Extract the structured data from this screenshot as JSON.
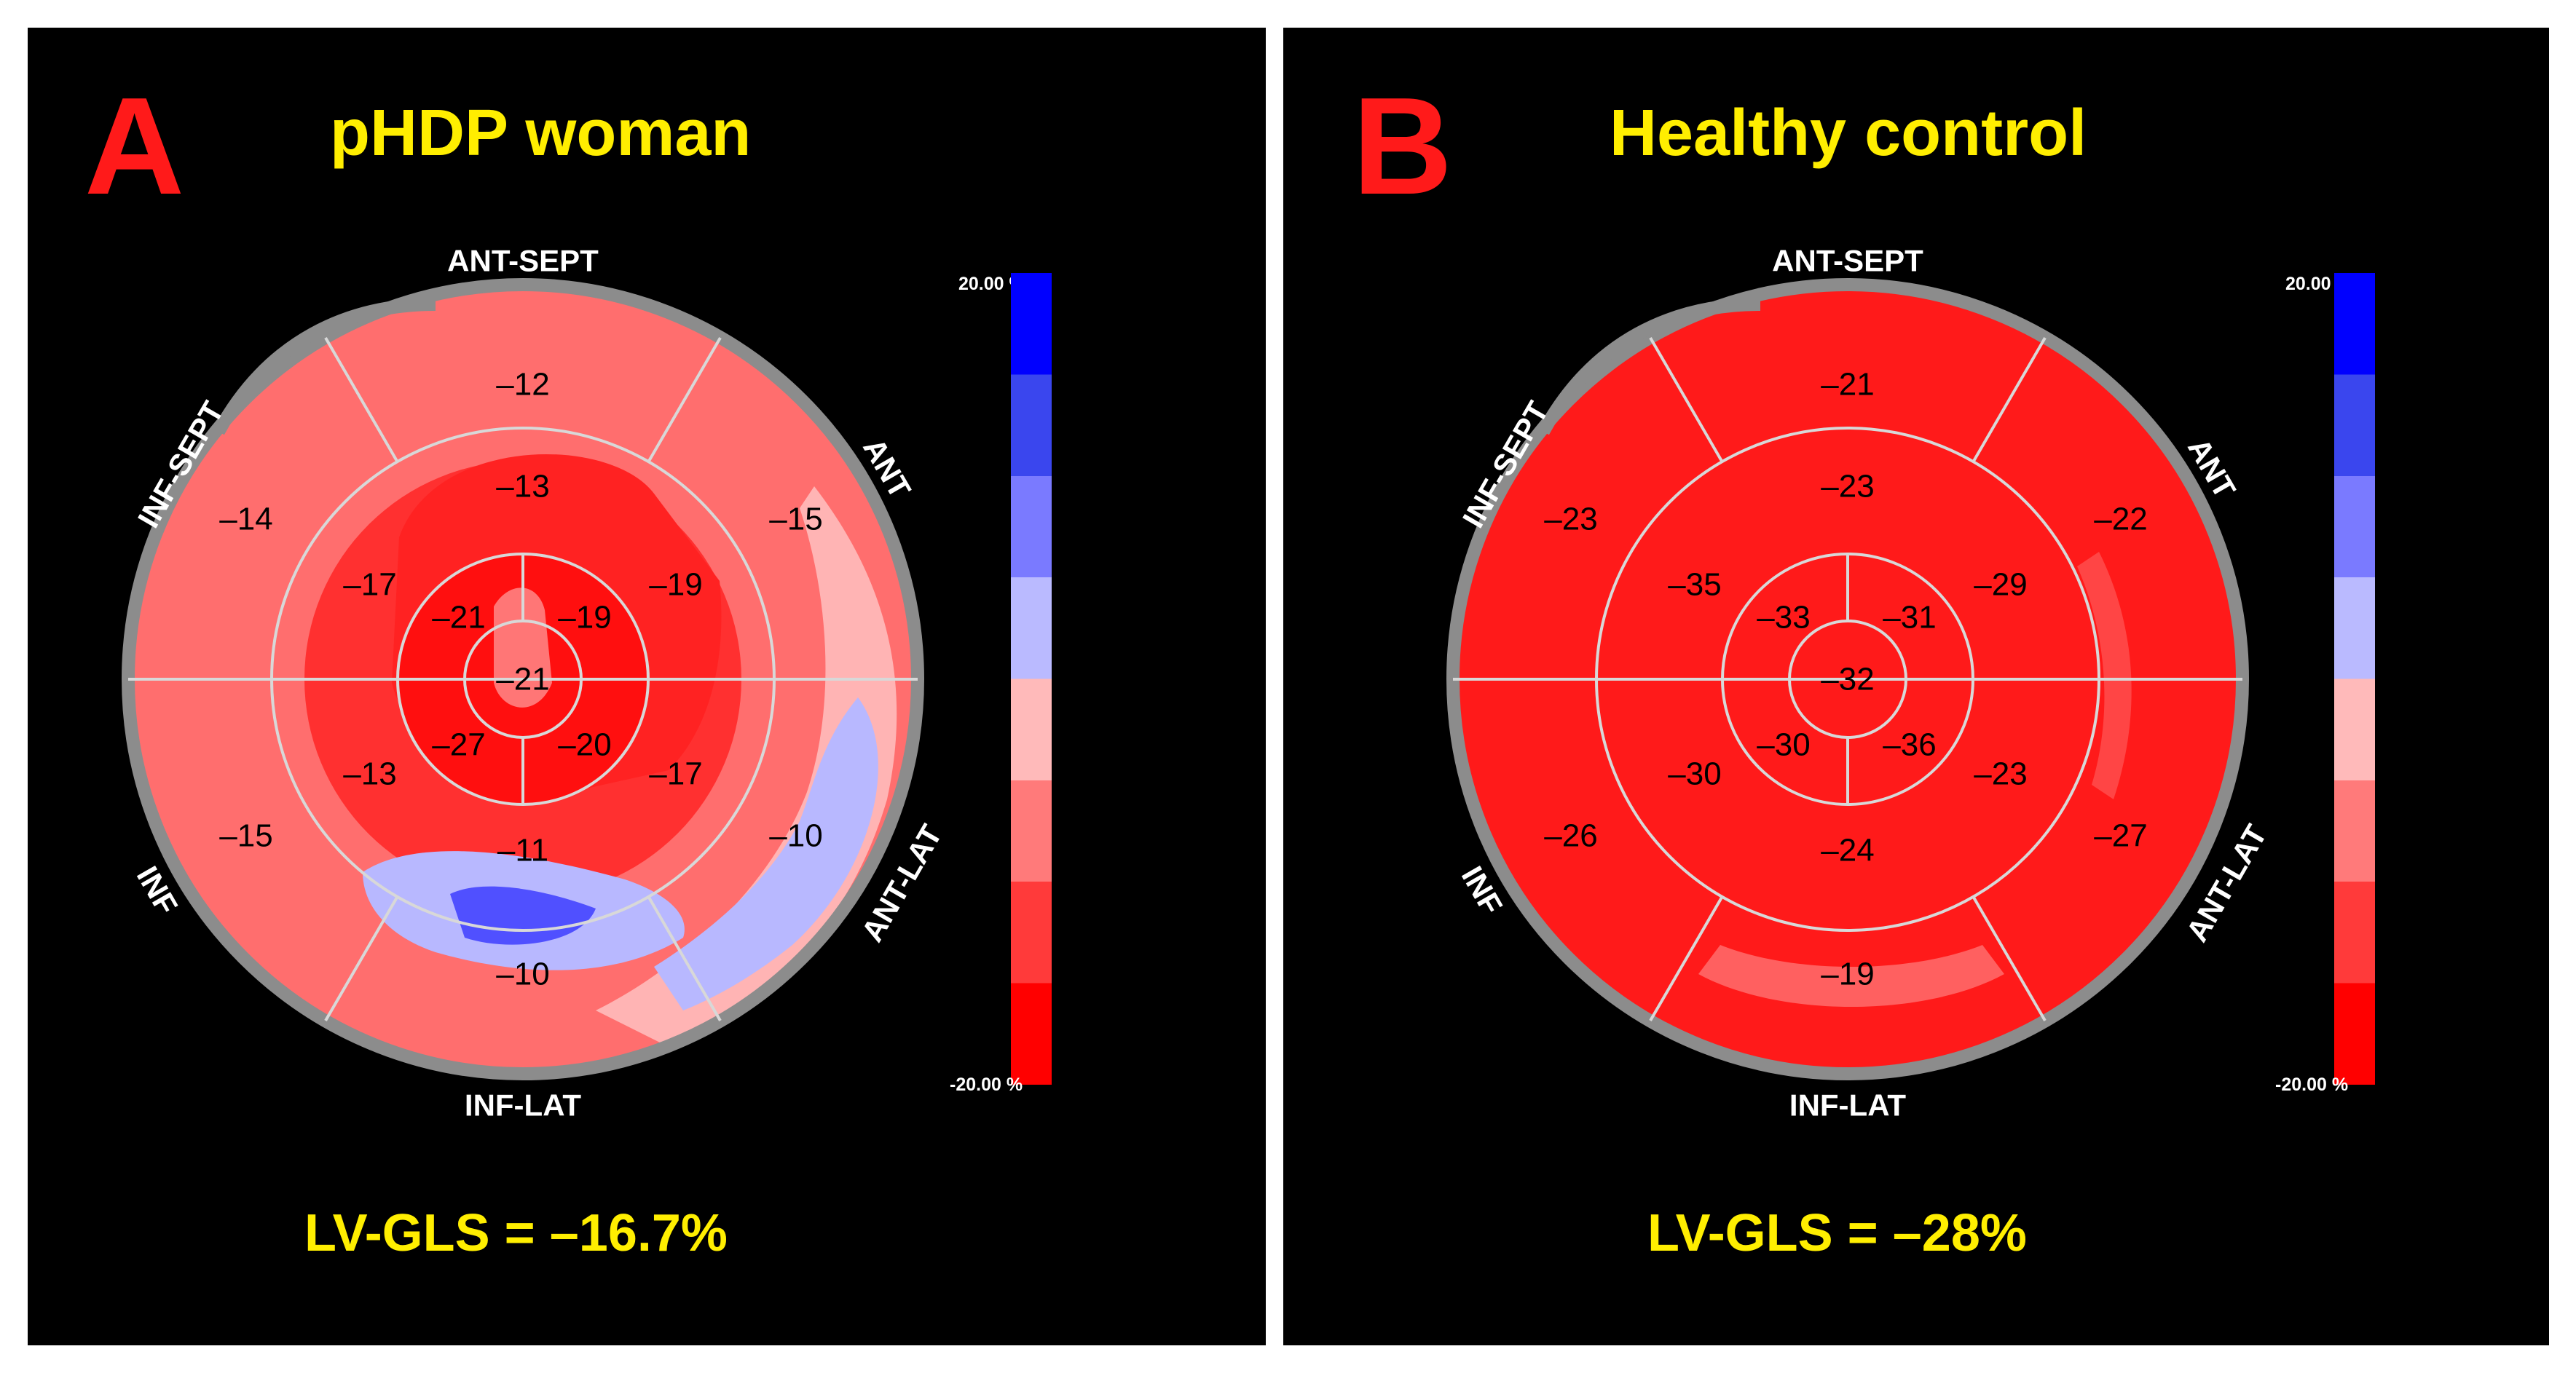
{
  "scale": {
    "max_label": "20.00 %",
    "min_label": "-20.00 %",
    "bands": [
      "#0000ff",
      "#3a46ee",
      "#7a7aff",
      "#babaff",
      "#ffbaba",
      "#ff7a7a",
      "#ff3a3a",
      "#ff0000"
    ]
  },
  "panels": [
    {
      "id": "A",
      "letter": "A",
      "title": "pHDP woman",
      "gls": "LV-GLS = –16.7%",
      "base_color": "#ff6e6e",
      "walls": {
        "top": "ANT-SEPT",
        "upper_right": "ANT",
        "lower_right": "ANT-LAT",
        "bottom": "INF-LAT",
        "lower_left": "INF",
        "upper_left": "INF-SEPT"
      },
      "outer": {
        "top": "–12",
        "upper_right": "–15",
        "lower_right": "–10",
        "bottom": "–10",
        "lower_left": "–15",
        "upper_left": "–14"
      },
      "mid": {
        "top": "–13",
        "upper_right": "–19",
        "lower_right": "–17",
        "bottom": "–11",
        "lower_left": "–13",
        "upper_left": "–17"
      },
      "apical": {
        "top_right": "–19",
        "bottom_right": "–20",
        "bottom_left": "–27",
        "top_left": "–21"
      },
      "apex": "–21"
    },
    {
      "id": "B",
      "letter": "B",
      "title": "Healthy control",
      "gls": "LV-GLS = –28%",
      "base_color": "#ff1a1a",
      "walls": {
        "top": "ANT-SEPT",
        "upper_right": "ANT",
        "lower_right": "ANT-LAT",
        "bottom": "INF-LAT",
        "lower_left": "INF",
        "upper_left": "INF-SEPT"
      },
      "outer": {
        "top": "–21",
        "upper_right": "–22",
        "lower_right": "–27",
        "bottom": "–19",
        "lower_left": "–26",
        "upper_left": "–23"
      },
      "mid": {
        "top": "–23",
        "upper_right": "–29",
        "lower_right": "–23",
        "bottom": "–24",
        "lower_left": "–30",
        "upper_left": "–35"
      },
      "apical": {
        "top_right": "–31",
        "bottom_right": "–36",
        "bottom_left": "–30",
        "top_left": "–33"
      },
      "apex": "–32"
    }
  ]
}
